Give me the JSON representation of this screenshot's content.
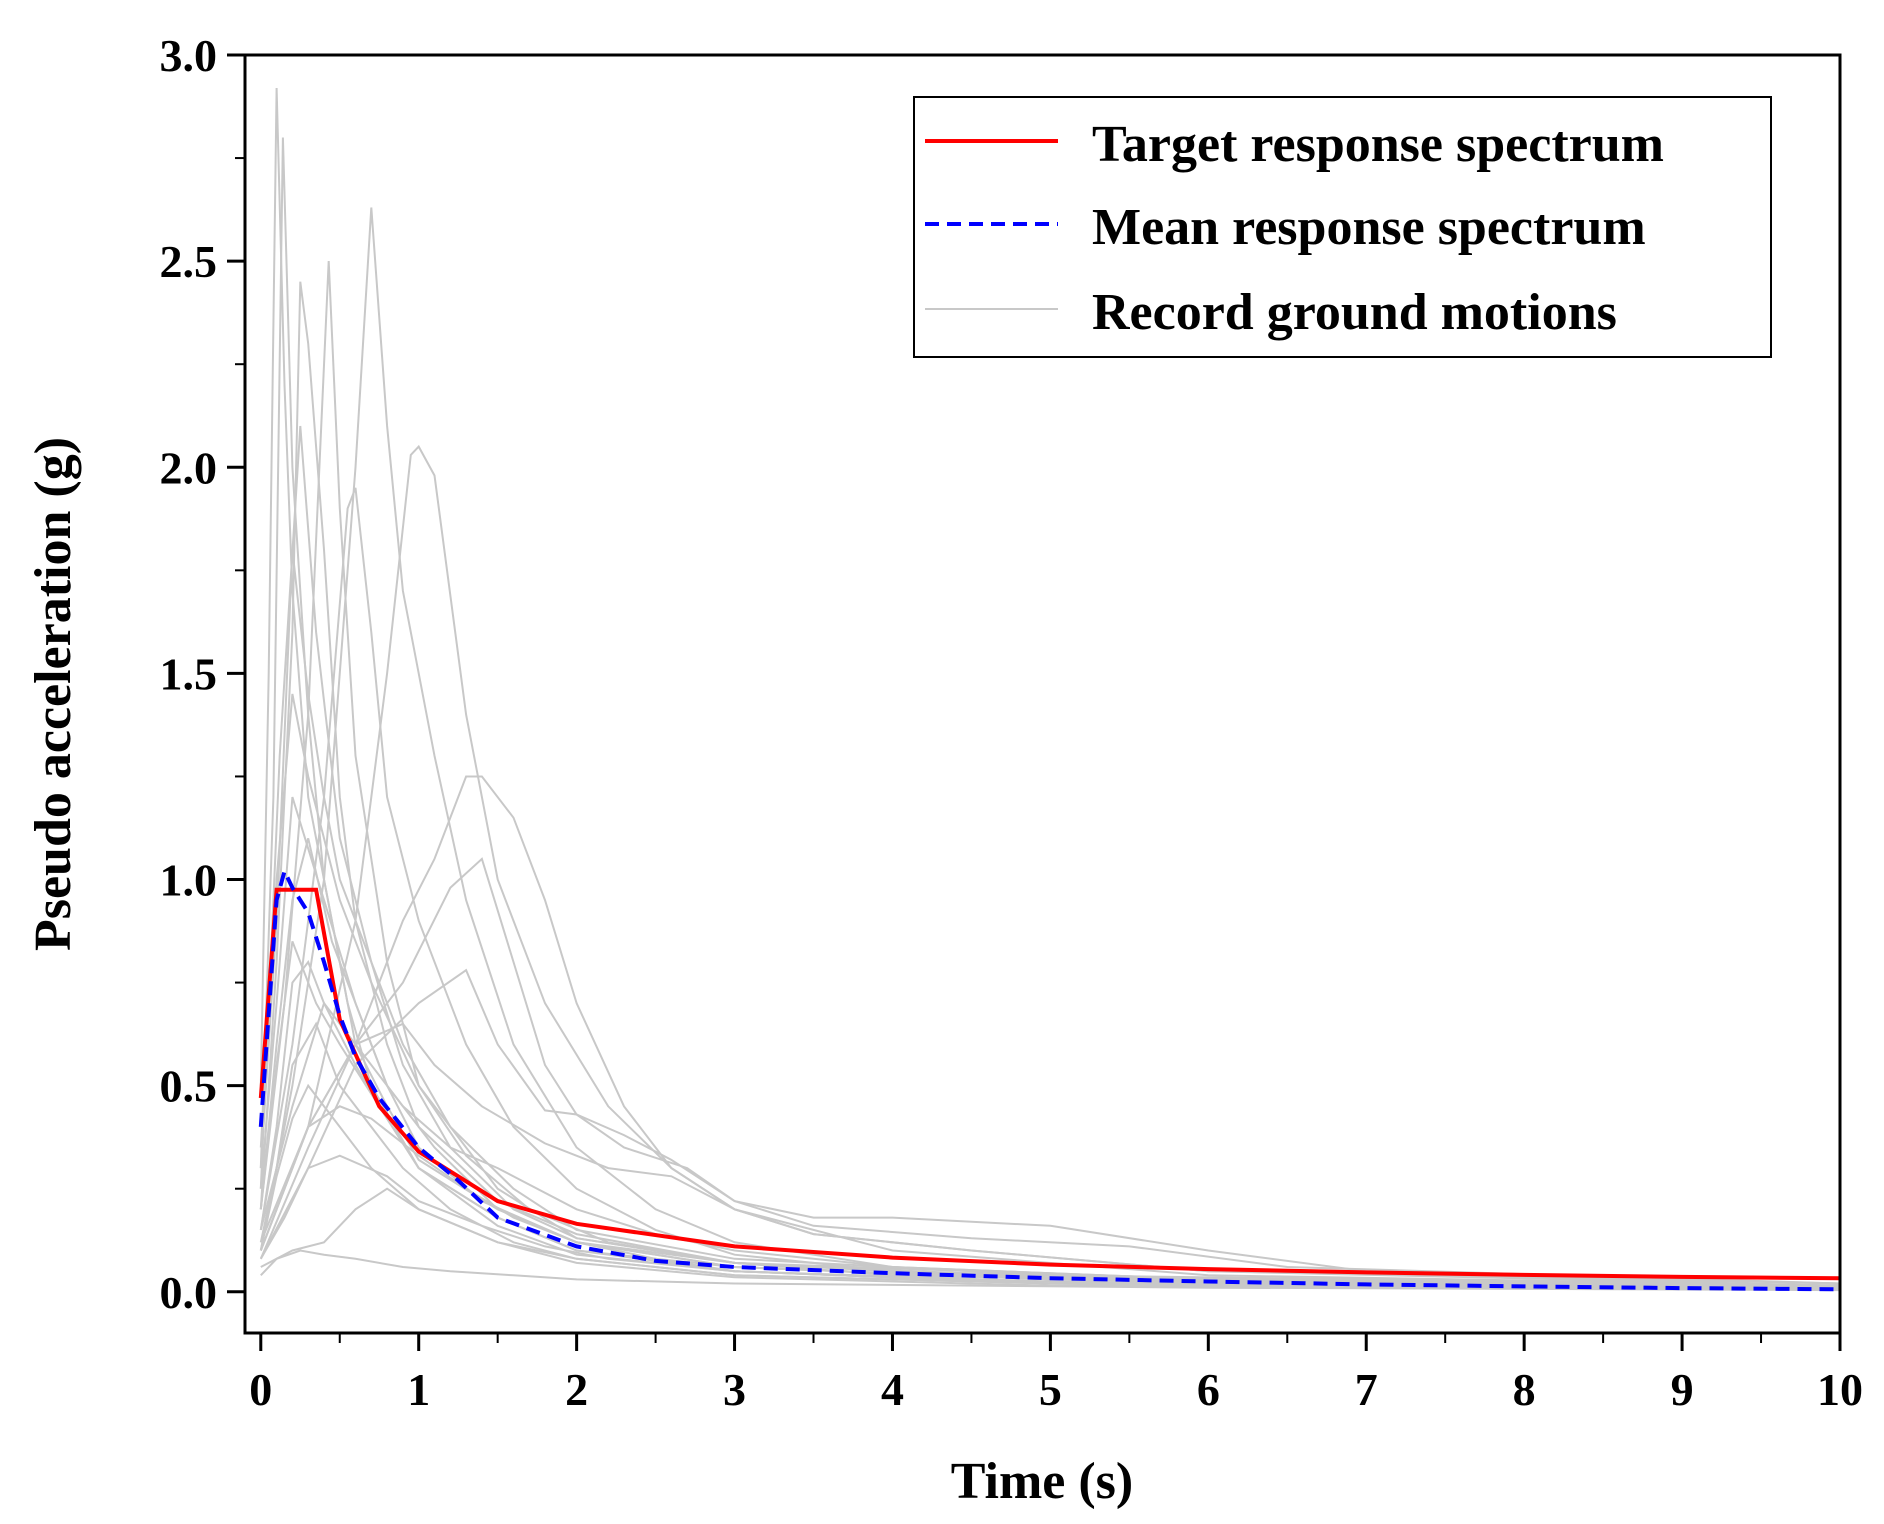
{
  "chart_data": {
    "type": "line",
    "title": "",
    "xlabel": "Time (s)",
    "ylabel": "Pseudo acceleration (g)",
    "xlim": [
      -0.1,
      10
    ],
    "ylim": [
      -0.1,
      3.0
    ],
    "xticks": [
      0,
      1,
      2,
      3,
      4,
      5,
      6,
      7,
      8,
      9,
      10
    ],
    "xtick_labels": [
      "0",
      "1",
      "2",
      "3",
      "4",
      "5",
      "6",
      "7",
      "8",
      "9",
      "10"
    ],
    "yticks": [
      0.0,
      0.5,
      1.0,
      1.5,
      2.0,
      2.5,
      3.0
    ],
    "ytick_labels": [
      "0.0",
      "0.5",
      "1.0",
      "1.5",
      "2.0",
      "2.5",
      "3.0"
    ],
    "grid": false,
    "legend_position": "top-right",
    "colors": {
      "target": "#ff0000",
      "mean": "#0000ff",
      "records": "#c8c8c8",
      "axis": "#000000"
    },
    "series": [
      {
        "name": "Target response spectrum",
        "style": "solid",
        "x": [
          0.0,
          0.1,
          0.35,
          0.5,
          0.75,
          1.0,
          1.5,
          2.0,
          3.0,
          4.0,
          5.0,
          6.0,
          7.0,
          8.0,
          9.0,
          10.0
        ],
        "y": [
          0.47,
          0.975,
          0.975,
          0.66,
          0.45,
          0.34,
          0.22,
          0.165,
          0.11,
          0.083,
          0.066,
          0.055,
          0.047,
          0.041,
          0.036,
          0.033
        ]
      },
      {
        "name": "Mean response spectrum",
        "style": "dashed",
        "x": [
          0.0,
          0.1,
          0.15,
          0.2,
          0.3,
          0.4,
          0.5,
          0.6,
          0.75,
          1.0,
          1.25,
          1.5,
          2.0,
          2.5,
          3.0,
          4.0,
          5.0,
          6.0,
          7.0,
          8.0,
          9.0,
          10.0
        ],
        "y": [
          0.4,
          0.95,
          1.02,
          0.98,
          0.92,
          0.8,
          0.67,
          0.57,
          0.47,
          0.35,
          0.27,
          0.18,
          0.11,
          0.075,
          0.06,
          0.045,
          0.033,
          0.025,
          0.018,
          0.013,
          0.009,
          0.006
        ]
      },
      {
        "name": "Record ground motions",
        "style": "solid",
        "records": [
          {
            "x": [
              0.0,
              0.05,
              0.1,
              0.15,
              0.2,
              0.3,
              0.45,
              0.6,
              0.8,
              1.0,
              1.5,
              2.0,
              3.0,
              4.0,
              6.0,
              10.0
            ],
            "y": [
              0.5,
              1.5,
              2.92,
              2.2,
              1.7,
              1.2,
              0.9,
              0.6,
              0.45,
              0.32,
              0.2,
              0.12,
              0.07,
              0.04,
              0.025,
              0.01
            ]
          },
          {
            "x": [
              0.0,
              0.08,
              0.14,
              0.2,
              0.3,
              0.4,
              0.55,
              0.7,
              1.0,
              1.5,
              2.0,
              3.0,
              5.0,
              10.0
            ],
            "y": [
              0.3,
              1.2,
              2.8,
              2.0,
              1.4,
              1.0,
              0.7,
              0.5,
              0.3,
              0.18,
              0.1,
              0.06,
              0.03,
              0.01
            ]
          },
          {
            "x": [
              0.0,
              0.1,
              0.2,
              0.25,
              0.3,
              0.4,
              0.5,
              0.6,
              0.8,
              1.0,
              1.5,
              2.0,
              3.0,
              6.0,
              10.0
            ],
            "y": [
              0.2,
              0.8,
              1.6,
              2.45,
              2.3,
              1.8,
              1.2,
              0.9,
              0.6,
              0.4,
              0.22,
              0.14,
              0.07,
              0.03,
              0.012
            ]
          },
          {
            "x": [
              0.0,
              0.15,
              0.3,
              0.43,
              0.5,
              0.6,
              0.8,
              1.0,
              1.5,
              2.0,
              3.0,
              5.0,
              10.0
            ],
            "y": [
              0.2,
              0.7,
              1.4,
              2.5,
              1.9,
              1.3,
              0.8,
              0.5,
              0.25,
              0.13,
              0.07,
              0.03,
              0.01
            ]
          },
          {
            "x": [
              0.0,
              0.2,
              0.4,
              0.55,
              0.6,
              0.7,
              0.8,
              1.0,
              1.3,
              1.6,
              2.0,
              2.5,
              3.0,
              4.0,
              6.0,
              10.0
            ],
            "y": [
              0.15,
              0.6,
              1.2,
              1.9,
              1.95,
              1.6,
              1.2,
              0.9,
              0.6,
              0.4,
              0.25,
              0.15,
              0.09,
              0.05,
              0.03,
              0.01
            ]
          },
          {
            "x": [
              0.0,
              0.2,
              0.4,
              0.6,
              0.7,
              0.8,
              0.9,
              1.1,
              1.3,
              1.6,
              2.0,
              2.5,
              3.0,
              4.0,
              6.0,
              10.0
            ],
            "y": [
              0.1,
              0.5,
              1.0,
              2.0,
              2.63,
              2.1,
              1.7,
              1.3,
              0.95,
              0.6,
              0.35,
              0.2,
              0.12,
              0.06,
              0.03,
              0.012
            ]
          },
          {
            "x": [
              0.0,
              0.3,
              0.6,
              0.8,
              0.95,
              1.0,
              1.1,
              1.3,
              1.5,
              1.8,
              2.2,
              2.6,
              3.0,
              4.0,
              6.0,
              10.0
            ],
            "y": [
              0.1,
              0.4,
              0.9,
              1.5,
              2.03,
              2.05,
              1.98,
              1.4,
              1.0,
              0.7,
              0.45,
              0.3,
              0.2,
              0.1,
              0.04,
              0.015
            ]
          },
          {
            "x": [
              0.0,
              0.3,
              0.6,
              0.9,
              1.1,
              1.3,
              1.4,
              1.6,
              1.8,
              2.0,
              2.3,
              2.6,
              3.0,
              3.5,
              4.5,
              6.0,
              10.0
            ],
            "y": [
              0.08,
              0.35,
              0.6,
              0.9,
              1.05,
              1.25,
              1.25,
              1.15,
              0.95,
              0.7,
              0.45,
              0.3,
              0.2,
              0.14,
              0.1,
              0.05,
              0.02
            ]
          },
          {
            "x": [
              0.0,
              0.3,
              0.6,
              0.9,
              1.2,
              1.4,
              1.6,
              1.8,
              2.0,
              2.3,
              2.7,
              3.0,
              3.5,
              4.0,
              5.0,
              6.0,
              7.0,
              10.0
            ],
            "y": [
              0.1,
              0.4,
              0.6,
              0.75,
              0.98,
              1.05,
              0.8,
              0.55,
              0.43,
              0.35,
              0.3,
              0.22,
              0.18,
              0.18,
              0.16,
              0.1,
              0.05,
              0.02
            ]
          },
          {
            "x": [
              0.0,
              0.3,
              0.6,
              1.0,
              1.3,
              1.5,
              1.8,
              2.0,
              2.3,
              2.6,
              3.0,
              3.5,
              4.5,
              5.5,
              6.5,
              10.0
            ],
            "y": [
              0.08,
              0.3,
              0.55,
              0.7,
              0.78,
              0.6,
              0.44,
              0.43,
              0.38,
              0.32,
              0.22,
              0.16,
              0.13,
              0.11,
              0.06,
              0.02
            ]
          },
          {
            "x": [
              0.0,
              0.1,
              0.2,
              0.3,
              0.4,
              0.5,
              0.7,
              0.9,
              1.2,
              1.6,
              2.0,
              3.0,
              5.0,
              10.0
            ],
            "y": [
              0.3,
              0.9,
              1.8,
              1.45,
              1.2,
              1.0,
              0.8,
              0.6,
              0.4,
              0.25,
              0.15,
              0.08,
              0.04,
              0.015
            ]
          },
          {
            "x": [
              0.0,
              0.12,
              0.25,
              0.35,
              0.5,
              0.7,
              0.9,
              1.2,
              1.6,
              2.0,
              3.0,
              5.0,
              10.0
            ],
            "y": [
              0.25,
              1.3,
              2.1,
              1.6,
              1.1,
              0.8,
              0.55,
              0.35,
              0.2,
              0.13,
              0.07,
              0.035,
              0.012
            ]
          },
          {
            "x": [
              0.0,
              0.1,
              0.2,
              0.3,
              0.45,
              0.6,
              0.8,
              1.0,
              1.4,
              2.0,
              3.0,
              5.0,
              10.0
            ],
            "y": [
              0.2,
              0.6,
              0.95,
              1.1,
              0.85,
              0.7,
              0.5,
              0.35,
              0.22,
              0.12,
              0.06,
              0.03,
              0.01
            ]
          },
          {
            "x": [
              0.0,
              0.1,
              0.2,
              0.3,
              0.4,
              0.6,
              0.8,
              1.0,
              1.5,
              2.0,
              3.0,
              5.0,
              10.0
            ],
            "y": [
              0.15,
              0.4,
              0.75,
              0.8,
              0.7,
              0.55,
              0.42,
              0.3,
              0.18,
              0.1,
              0.05,
              0.025,
              0.008
            ]
          },
          {
            "x": [
              0.0,
              0.1,
              0.2,
              0.35,
              0.5,
              0.7,
              0.9,
              1.2,
              1.6,
              2.0,
              3.0,
              5.0,
              10.0
            ],
            "y": [
              0.12,
              0.3,
              0.55,
              0.65,
              0.5,
              0.4,
              0.3,
              0.2,
              0.12,
              0.08,
              0.04,
              0.02,
              0.006
            ]
          },
          {
            "x": [
              0.0,
              0.15,
              0.3,
              0.5,
              0.7,
              1.0,
              1.3,
              1.6,
              2.0,
              2.5,
              3.0,
              5.0,
              10.0
            ],
            "y": [
              0.1,
              0.25,
              0.4,
              0.45,
              0.42,
              0.33,
              0.25,
              0.18,
              0.12,
              0.08,
              0.05,
              0.02,
              0.006
            ]
          },
          {
            "x": [
              0.0,
              0.15,
              0.3,
              0.5,
              0.8,
              1.0,
              1.4,
              1.8,
              2.2,
              3.0,
              5.0,
              10.0
            ],
            "y": [
              0.08,
              0.18,
              0.3,
              0.33,
              0.28,
              0.22,
              0.16,
              0.11,
              0.08,
              0.05,
              0.02,
              0.005
            ]
          },
          {
            "x": [
              0.0,
              0.2,
              0.4,
              0.6,
              0.8,
              1.0,
              1.5,
              2.0,
              3.0,
              5.0,
              10.0
            ],
            "y": [
              0.06,
              0.1,
              0.12,
              0.2,
              0.25,
              0.2,
              0.12,
              0.08,
              0.04,
              0.02,
              0.005
            ]
          },
          {
            "x": [
              0.0,
              0.1,
              0.25,
              0.4,
              0.6,
              0.9,
              1.2,
              1.6,
              2.0,
              3.0,
              6.0,
              10.0
            ],
            "y": [
              0.04,
              0.08,
              0.1,
              0.09,
              0.08,
              0.06,
              0.05,
              0.04,
              0.03,
              0.02,
              0.01,
              0.004
            ]
          },
          {
            "x": [
              0.0,
              0.1,
              0.2,
              0.3,
              0.5,
              0.7,
              1.0,
              1.3,
              1.7,
              2.2,
              3.0,
              5.0,
              10.0
            ],
            "y": [
              0.35,
              1.0,
              1.45,
              1.25,
              0.95,
              0.75,
              0.5,
              0.33,
              0.2,
              0.12,
              0.07,
              0.03,
              0.01
            ]
          },
          {
            "x": [
              0.0,
              0.1,
              0.2,
              0.35,
              0.5,
              0.75,
              1.0,
              1.5,
              2.0,
              3.0,
              5.0,
              10.0
            ],
            "y": [
              0.2,
              0.55,
              0.85,
              0.7,
              0.6,
              0.45,
              0.3,
              0.16,
              0.09,
              0.05,
              0.02,
              0.006
            ]
          },
          {
            "x": [
              0.0,
              0.3,
              0.6,
              0.9,
              1.1,
              1.4,
              1.8,
              2.2,
              2.6,
              3.0,
              3.5,
              4.5,
              6.0,
              10.0
            ],
            "y": [
              0.12,
              0.4,
              0.6,
              0.65,
              0.55,
              0.45,
              0.36,
              0.3,
              0.28,
              0.2,
              0.14,
              0.1,
              0.05,
              0.015
            ]
          },
          {
            "x": [
              0.0,
              0.2,
              0.4,
              0.6,
              0.9,
              1.2,
              1.5,
              2.0,
              2.5,
              3.0,
              4.0,
              6.0,
              10.0
            ],
            "y": [
              0.15,
              0.45,
              0.7,
              0.6,
              0.45,
              0.35,
              0.3,
              0.2,
              0.14,
              0.1,
              0.06,
              0.03,
              0.01
            ]
          },
          {
            "x": [
              0.0,
              0.1,
              0.2,
              0.4,
              0.6,
              0.8,
              1.1,
              1.5,
              2.0,
              3.0,
              5.0,
              10.0
            ],
            "y": [
              0.25,
              0.7,
              1.2,
              0.95,
              0.7,
              0.5,
              0.35,
              0.2,
              0.12,
              0.06,
              0.03,
              0.01
            ]
          },
          {
            "x": [
              0.0,
              0.1,
              0.2,
              0.3,
              0.5,
              0.7,
              1.0,
              1.5,
              2.0,
              3.0,
              5.0,
              10.0
            ],
            "y": [
              0.1,
              0.28,
              0.42,
              0.5,
              0.4,
              0.3,
              0.2,
              0.12,
              0.07,
              0.035,
              0.015,
              0.005
            ]
          }
        ]
      }
    ]
  }
}
